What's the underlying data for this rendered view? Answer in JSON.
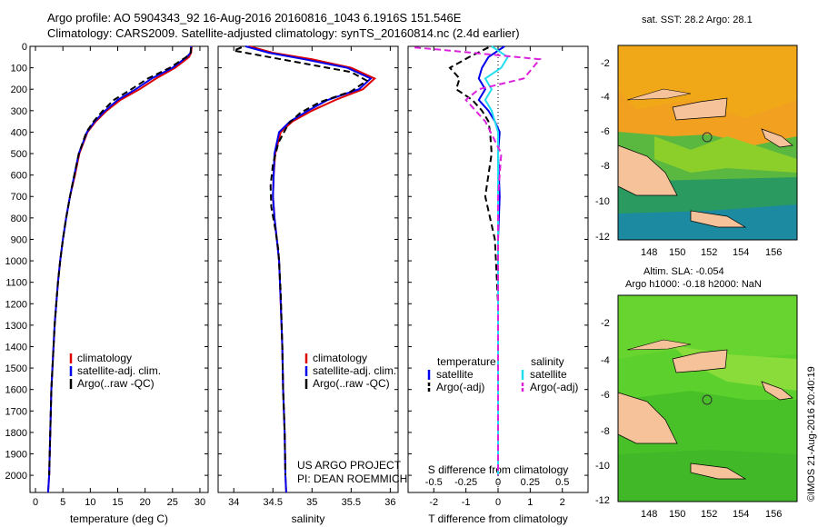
{
  "title": {
    "line1": "Argo profile: AO 5904343_92  16-Aug-2016 20160816_1043  6.1916S 151.546E",
    "line2": "Climatology: CARS2009. Satellite-adjusted climatology: synTS_20160814.nc (2.4d earlier)"
  },
  "colors": {
    "clim": "#dd0000",
    "sat": "#0000ee",
    "argo": "#000000",
    "sat_sal": "#22ddee",
    "argo_sal": "#dd22dd",
    "land": "#f5c29a"
  },
  "chart_data": [
    {
      "type": "line",
      "panel": "temperature",
      "xlabel": "temperature (deg C)",
      "xlim": [
        -1,
        31.5
      ],
      "xticks": [
        0,
        5,
        10,
        15,
        20,
        25,
        30
      ],
      "ylim": [
        0,
        2080
      ],
      "yticks": [
        0,
        100,
        200,
        300,
        400,
        500,
        600,
        700,
        800,
        900,
        1000,
        1100,
        1200,
        1300,
        1400,
        1500,
        1600,
        1700,
        1800,
        1900,
        2000
      ],
      "y_inverted": true,
      "legend": [
        "climatology",
        "satellite-adj. clim.",
        "Argo(..raw -QC)"
      ],
      "series": [
        {
          "name": "climatology",
          "color": "clim",
          "x": [
            28.5,
            28.4,
            28.0,
            25.5,
            22.0,
            19.0,
            15.5,
            13.0,
            11.0,
            9.5,
            8.0,
            7.2,
            6.3,
            5.6,
            5.0,
            4.5,
            4.1,
            3.8,
            3.5,
            3.3,
            3.1,
            2.9,
            2.7,
            2.5,
            2.3
          ],
          "y": [
            0,
            30,
            50,
            100,
            150,
            200,
            250,
            300,
            350,
            400,
            500,
            600,
            700,
            800,
            900,
            1000,
            1100,
            1200,
            1300,
            1400,
            1500,
            1600,
            1800,
            2000,
            2080
          ]
        },
        {
          "name": "satellite-adj. clim.",
          "color": "sat",
          "x": [
            28.4,
            28.3,
            27.6,
            25.0,
            21.2,
            18.3,
            15.0,
            12.7,
            10.8,
            9.4,
            7.9,
            7.1,
            6.3,
            5.6,
            5.0,
            4.5,
            4.1,
            3.8,
            3.5,
            3.3,
            3.1,
            2.9,
            2.7,
            2.5,
            2.3
          ],
          "y": [
            0,
            30,
            50,
            100,
            150,
            200,
            250,
            300,
            350,
            400,
            500,
            600,
            700,
            800,
            900,
            1000,
            1100,
            1200,
            1300,
            1400,
            1500,
            1600,
            1800,
            2000,
            2080
          ]
        },
        {
          "name": "Argo(..raw -QC)",
          "color": "argo",
          "x": [
            28.4,
            28.3,
            27.5,
            24.5,
            20.5,
            17.5,
            14.3,
            12.3,
            10.6,
            9.3,
            7.9,
            7.1,
            6.3,
            5.6,
            5.0,
            4.5,
            4.1,
            3.8,
            3.5,
            3.3,
            3.1,
            2.9,
            2.7,
            2.5
          ],
          "y": [
            5,
            30,
            50,
            100,
            150,
            200,
            250,
            300,
            350,
            400,
            500,
            600,
            700,
            800,
            900,
            1000,
            1100,
            1200,
            1300,
            1400,
            1500,
            1600,
            1800,
            2000
          ]
        }
      ]
    },
    {
      "type": "line",
      "panel": "salinity",
      "xlabel": "salinity",
      "xlim": [
        33.8,
        36.1
      ],
      "xticks": [
        34,
        34.5,
        35,
        35.5,
        36
      ],
      "ylim": [
        0,
        2080
      ],
      "y_inverted": true,
      "legend": [
        "climatology",
        "satellite-adj. clim.",
        "Argo(..raw -QC)"
      ],
      "series": [
        {
          "name": "climatology",
          "color": "clim",
          "x": [
            34.2,
            34.5,
            35.0,
            35.5,
            35.8,
            35.65,
            35.3,
            35.0,
            34.75,
            34.6,
            34.53,
            34.51,
            34.5,
            34.52,
            34.55,
            34.58,
            34.6,
            34.62,
            34.63,
            34.65,
            34.66,
            34.67
          ],
          "y": [
            0,
            30,
            60,
            100,
            150,
            200,
            250,
            300,
            350,
            400,
            500,
            600,
            700,
            800,
            900,
            1000,
            1200,
            1400,
            1600,
            1800,
            2000,
            2080
          ]
        },
        {
          "name": "satellite-adj. clim.",
          "color": "sat",
          "x": [
            34.15,
            34.45,
            34.9,
            35.45,
            35.75,
            35.6,
            35.2,
            34.95,
            34.72,
            34.58,
            34.52,
            34.51,
            34.5,
            34.52,
            34.55,
            34.58,
            34.6,
            34.62,
            34.63,
            34.65,
            34.66,
            34.67
          ],
          "y": [
            0,
            30,
            60,
            100,
            150,
            200,
            250,
            300,
            350,
            400,
            500,
            600,
            700,
            800,
            900,
            1000,
            1200,
            1400,
            1600,
            1800,
            2000,
            2080
          ]
        },
        {
          "name": "Argo(..raw -QC)",
          "color": "argo",
          "x": [
            34.1,
            34.0,
            34.3,
            34.9,
            35.5,
            35.7,
            35.5,
            35.1,
            34.85,
            34.7,
            34.57,
            34.5,
            34.47,
            34.48,
            34.53,
            34.57,
            34.6,
            34.62,
            34.63,
            34.65,
            34.66
          ],
          "y": [
            5,
            20,
            40,
            80,
            120,
            160,
            210,
            260,
            310,
            360,
            450,
            550,
            650,
            750,
            850,
            950,
            1150,
            1400,
            1600,
            1800,
            2000
          ]
        }
      ]
    },
    {
      "type": "line",
      "panel": "difference",
      "xlabel": "T difference from climatology",
      "top_label": "S difference from climatology",
      "xlim": [
        -2.8,
        2.8
      ],
      "xticks": [
        -2,
        -1,
        0,
        1,
        2
      ],
      "top_xticks": [
        -0.5,
        -0.25,
        0,
        0.25,
        0.5
      ],
      "top_xticks_pos": [
        -2,
        -1,
        0,
        1,
        2
      ],
      "ylim": [
        0,
        2080
      ],
      "y_inverted": true,
      "legend": {
        "temperature": [
          "satellite",
          "Argo(-adj)"
        ],
        "salinity": [
          "satellite",
          "Argo(-adj)"
        ]
      },
      "series": [
        {
          "name": "temperature satellite",
          "color": "sat",
          "x": [
            0.2,
            -0.3,
            -0.5,
            -0.6,
            -0.4,
            -0.6,
            -0.3,
            -0.1,
            0.05,
            0.0,
            0.05,
            0.0,
            0.0,
            0.0,
            0.0
          ],
          "y": [
            0,
            50,
            100,
            150,
            200,
            250,
            300,
            350,
            400,
            500,
            700,
            900,
            1200,
            1600,
            2000
          ]
        },
        {
          "name": "temperature Argo(-adj)",
          "color": "argo",
          "x": [
            -0.3,
            -0.9,
            -1.5,
            -1.2,
            -1.3,
            -0.8,
            -0.5,
            -0.3,
            -0.25,
            -0.2,
            -0.4,
            -0.1,
            0.0,
            0.0,
            0.0
          ],
          "y": [
            5,
            50,
            100,
            150,
            200,
            250,
            300,
            350,
            400,
            500,
            700,
            900,
            1200,
            1600,
            2000
          ]
        },
        {
          "name": "salinity satellite",
          "color": "sat_sal",
          "x": [
            -0.2,
            0.3,
            0.1,
            -0.4,
            -0.2,
            -0.4,
            -0.2,
            0.0,
            0.0,
            0.0,
            0.0,
            0.0,
            0.0
          ],
          "y": [
            0,
            50,
            100,
            150,
            200,
            250,
            300,
            400,
            500,
            800,
            1200,
            1600,
            2000
          ]
        },
        {
          "name": "salinity Argo(-adj)",
          "color": "argo_sal",
          "x": [
            -2.6,
            -1.5,
            1.3,
            0.8,
            -0.6,
            -1.0,
            -0.4,
            0.1,
            0.0,
            0.0,
            0.0
          ],
          "y": [
            5,
            20,
            60,
            150,
            200,
            250,
            350,
            500,
            700,
            1200,
            2000
          ]
        }
      ]
    }
  ],
  "maps": {
    "sst": {
      "title": "sat. SST: 28.2  Argo: 28.1",
      "xticks": [
        "148",
        "150",
        "152",
        "154",
        "156"
      ],
      "yticks": [
        "-2",
        "-4",
        "-6",
        "-8",
        "-10",
        "-12"
      ]
    },
    "sla": {
      "title1": "Altim. SLA: -0.054",
      "title2": "Argo h1000: -0.18  h2000: NaN",
      "xticks": [
        "148",
        "150",
        "152",
        "154",
        "156"
      ],
      "yticks": [
        "-2",
        "-4",
        "-6",
        "-8",
        "-10",
        "-12"
      ]
    }
  },
  "credits": {
    "project_line1": "US ARGO PROJECT",
    "project_line2": "PI: DEAN ROEMMICH",
    "imos": "©IMOS 21-Aug-2016 20:40:19"
  }
}
